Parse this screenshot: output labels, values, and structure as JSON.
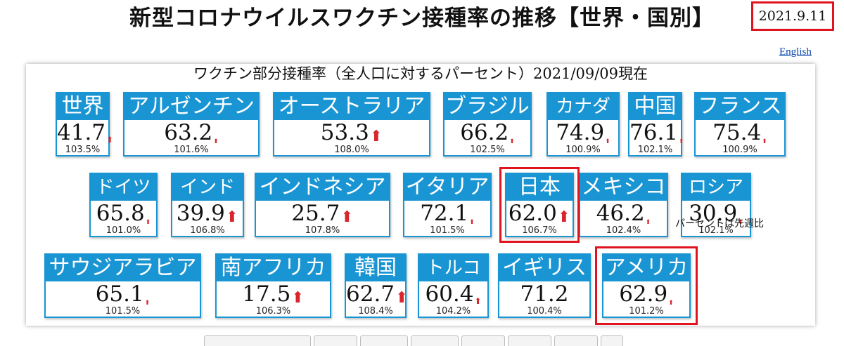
{
  "title": "新型コロナウイルスワクチン接種率の推移【世界・国別】",
  "date": "2021.9.11",
  "english_link": "English",
  "subtitle": "ワクチン部分接種率（全人口に対するパーセント）2021/09/09現在",
  "note": "パーセントは先週比",
  "arrow_glyph": "⬆",
  "arrow_color": "#d9252c",
  "tile_color": "#1a95d3",
  "highlight_color": "#e0141e",
  "countries": [
    {
      "name": "世界",
      "value": "41.7",
      "ratio": "103.5%",
      "trend": "small"
    },
    {
      "name": "アルゼンチン",
      "value": "63.2",
      "ratio": "101.6%",
      "trend": "tiny"
    },
    {
      "name": "オーストラリア",
      "value": "53.3",
      "ratio": "108.0%",
      "trend": "up"
    },
    {
      "name": "ブラジル",
      "value": "66.2",
      "ratio": "102.5%",
      "trend": "tiny"
    },
    {
      "name": "カナダ",
      "value": "74.9",
      "ratio": "100.9%",
      "trend": "tiny"
    },
    {
      "name": "中国",
      "value": "76.1",
      "ratio": "102.1%",
      "trend": "tiny"
    },
    {
      "name": "フランス",
      "value": "75.4",
      "ratio": "100.9%",
      "trend": "tiny"
    },
    {
      "name": "ドイツ",
      "value": "65.8",
      "ratio": "101.0%",
      "trend": "tiny"
    },
    {
      "name": "インド",
      "value": "39.9",
      "ratio": "106.8%",
      "trend": "up"
    },
    {
      "name": "インドネシア",
      "value": "25.7",
      "ratio": "107.8%",
      "trend": "up"
    },
    {
      "name": "イタリア",
      "value": "72.1",
      "ratio": "101.5%",
      "trend": "tiny"
    },
    {
      "name": "日本",
      "value": "62.0",
      "ratio": "106.7%",
      "trend": "up"
    },
    {
      "name": "メキシコ",
      "value": "46.2",
      "ratio": "102.4%",
      "trend": "tiny"
    },
    {
      "name": "ロシア",
      "value": "30.9",
      "ratio": "102.1%",
      "trend": "tiny"
    },
    {
      "name": "サウジアラビア",
      "value": "65.1",
      "ratio": "101.5%",
      "trend": "tiny"
    },
    {
      "name": "南アフリカ",
      "value": "17.5",
      "ratio": "106.3%",
      "trend": "up"
    },
    {
      "name": "韓国",
      "value": "62.7",
      "ratio": "108.4%",
      "trend": "up"
    },
    {
      "name": "トルコ",
      "value": "60.4",
      "ratio": "104.2%",
      "trend": "small"
    },
    {
      "name": "イギリス",
      "value": "71.2",
      "ratio": "100.4%",
      "trend": "none"
    },
    {
      "name": "アメリカ",
      "value": "62.9",
      "ratio": "101.2%",
      "trend": "tiny"
    }
  ]
}
